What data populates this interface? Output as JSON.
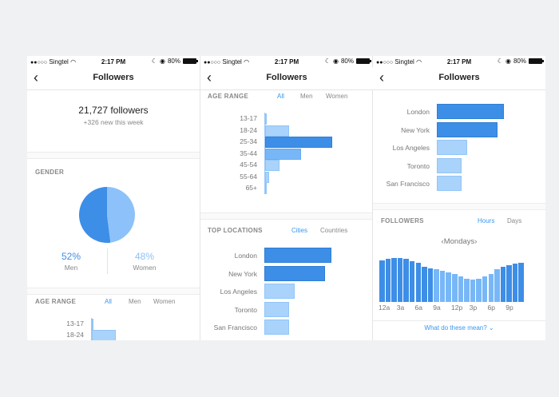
{
  "status": {
    "carrier": "Singtel",
    "time": "2:17 PM",
    "battery": "80%"
  },
  "nav": {
    "back_icon": "‹",
    "title": "Followers"
  },
  "summary": {
    "followers": "21,727 followers",
    "new": "+326 new this week"
  },
  "gender": {
    "title": "GENDER",
    "men_pct": "52%",
    "men_label": "Men",
    "women_pct": "48%",
    "women_label": "Women",
    "men_fraction": 0.52,
    "colors": {
      "men": "#3d8ee6",
      "women": "#8cc2f9"
    }
  },
  "age": {
    "title": "AGE RANGE",
    "tabs": [
      "All",
      "Men",
      "Women"
    ],
    "active_tab": "All",
    "rows": [
      {
        "label": "13-17",
        "value": 1
      },
      {
        "label": "18-24",
        "value": 18
      },
      {
        "label": "25-34",
        "value": 50
      },
      {
        "label": "35-44",
        "value": 27
      },
      {
        "label": "45-54",
        "value": 11
      },
      {
        "label": "55-64",
        "value": 3
      },
      {
        "label": "65+",
        "value": 1
      }
    ]
  },
  "locations": {
    "title": "TOP LOCATIONS",
    "tabs": [
      "Cities",
      "Countries"
    ],
    "active_tab": "Cities",
    "rows": [
      {
        "label": "London",
        "value": 100
      },
      {
        "label": "New York",
        "value": 90
      },
      {
        "label": "Los Angeles",
        "value": 45
      },
      {
        "label": "Toronto",
        "value": 37
      },
      {
        "label": "San Francisco",
        "value": 37
      }
    ]
  },
  "activity": {
    "title": "FOLLOWERS",
    "tabs": [
      "Hours",
      "Days"
    ],
    "active_tab": "Hours",
    "day": "Mondays",
    "prev_icon": "‹",
    "next_icon": "›",
    "ticks": [
      "12a",
      "3a",
      "6a",
      "9a",
      "12p",
      "3p",
      "6p",
      "9p"
    ],
    "values": [
      56,
      58,
      59,
      59,
      58,
      55,
      52,
      47,
      45,
      44,
      42,
      40,
      38,
      34,
      31,
      30,
      31,
      34,
      38,
      44,
      47,
      49,
      51,
      52
    ]
  },
  "footer_link": "What do these mean?",
  "chevron_icon": "⌄"
}
